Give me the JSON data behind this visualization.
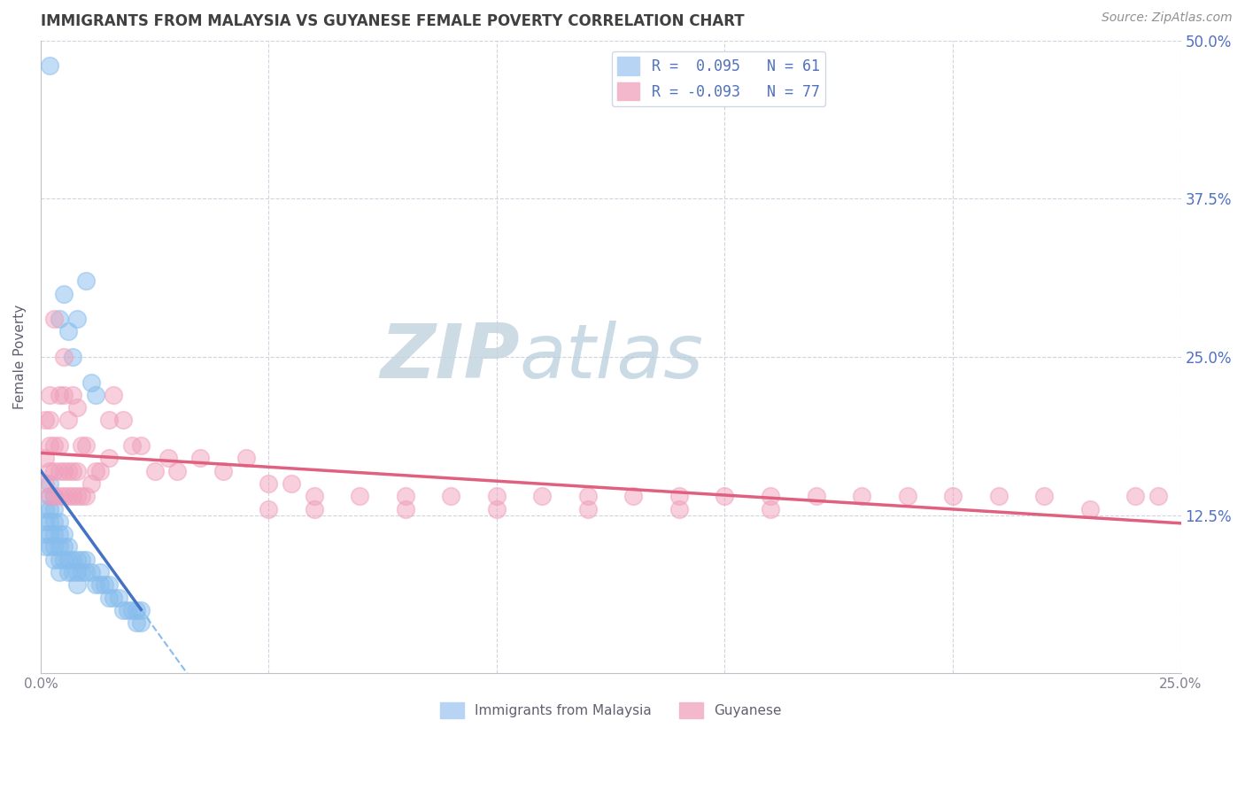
{
  "title": "IMMIGRANTS FROM MALAYSIA VS GUYANESE FEMALE POVERTY CORRELATION CHART",
  "source": "Source: ZipAtlas.com",
  "ylabel": "Female Poverty",
  "y_ticks": [
    0.0,
    0.125,
    0.25,
    0.375,
    0.5
  ],
  "y_tick_labels": [
    "",
    "12.5%",
    "25.0%",
    "37.5%",
    "50.0%"
  ],
  "x_ticks": [
    0.0,
    0.05,
    0.1,
    0.15,
    0.2,
    0.25
  ],
  "x_tick_labels": [
    "0.0%",
    "",
    "",
    "",
    "",
    "25.0%"
  ],
  "series1_color": "#87bded",
  "series2_color": "#f0a0bc",
  "trend1_color": "#4472c4",
  "trend2_color": "#e06080",
  "dashed_color": "#87bded",
  "watermark_zip_color": "#c8d4e0",
  "watermark_atlas_color": "#b0c8d8",
  "background": "#ffffff",
  "grid_color": "#d0d4e0",
  "title_color": "#404040",
  "axis_color": "#c0c0c8",
  "right_tick_color": "#5070c0",
  "xlim": [
    0.0,
    0.25
  ],
  "ylim": [
    0.0,
    0.5
  ],
  "malaysia_x": [
    0.001,
    0.001,
    0.001,
    0.001,
    0.002,
    0.002,
    0.002,
    0.002,
    0.002,
    0.002,
    0.002,
    0.003,
    0.003,
    0.003,
    0.003,
    0.003,
    0.003,
    0.004,
    0.004,
    0.004,
    0.004,
    0.004,
    0.004,
    0.005,
    0.005,
    0.005,
    0.005,
    0.006,
    0.006,
    0.006,
    0.006,
    0.007,
    0.007,
    0.007,
    0.008,
    0.008,
    0.008,
    0.009,
    0.009,
    0.01,
    0.01,
    0.01,
    0.011,
    0.011,
    0.012,
    0.012,
    0.013,
    0.013,
    0.014,
    0.015,
    0.015,
    0.016,
    0.017,
    0.018,
    0.019,
    0.02,
    0.021,
    0.021,
    0.022,
    0.022,
    0.008
  ],
  "malaysia_y": [
    0.1,
    0.11,
    0.12,
    0.13,
    0.1,
    0.11,
    0.12,
    0.13,
    0.14,
    0.15,
    0.48,
    0.09,
    0.1,
    0.11,
    0.12,
    0.13,
    0.14,
    0.08,
    0.09,
    0.1,
    0.11,
    0.12,
    0.28,
    0.09,
    0.1,
    0.11,
    0.3,
    0.08,
    0.09,
    0.1,
    0.27,
    0.08,
    0.09,
    0.25,
    0.08,
    0.09,
    0.28,
    0.08,
    0.09,
    0.08,
    0.09,
    0.31,
    0.08,
    0.23,
    0.07,
    0.22,
    0.07,
    0.08,
    0.07,
    0.06,
    0.07,
    0.06,
    0.06,
    0.05,
    0.05,
    0.05,
    0.04,
    0.05,
    0.04,
    0.05,
    0.07
  ],
  "guyanese_x": [
    0.001,
    0.001,
    0.001,
    0.002,
    0.002,
    0.002,
    0.002,
    0.002,
    0.003,
    0.003,
    0.003,
    0.003,
    0.004,
    0.004,
    0.004,
    0.004,
    0.005,
    0.005,
    0.005,
    0.005,
    0.006,
    0.006,
    0.006,
    0.007,
    0.007,
    0.007,
    0.008,
    0.008,
    0.008,
    0.009,
    0.009,
    0.01,
    0.01,
    0.011,
    0.012,
    0.013,
    0.015,
    0.015,
    0.016,
    0.018,
    0.02,
    0.022,
    0.025,
    0.028,
    0.03,
    0.035,
    0.04,
    0.045,
    0.05,
    0.055,
    0.06,
    0.07,
    0.08,
    0.09,
    0.1,
    0.11,
    0.12,
    0.13,
    0.14,
    0.15,
    0.16,
    0.17,
    0.18,
    0.19,
    0.2,
    0.21,
    0.22,
    0.23,
    0.24,
    0.245,
    0.05,
    0.06,
    0.08,
    0.1,
    0.12,
    0.14,
    0.16
  ],
  "guyanese_y": [
    0.15,
    0.17,
    0.2,
    0.14,
    0.16,
    0.18,
    0.2,
    0.22,
    0.14,
    0.16,
    0.18,
    0.28,
    0.14,
    0.16,
    0.18,
    0.22,
    0.14,
    0.16,
    0.22,
    0.25,
    0.14,
    0.16,
    0.2,
    0.14,
    0.16,
    0.22,
    0.14,
    0.16,
    0.21,
    0.14,
    0.18,
    0.14,
    0.18,
    0.15,
    0.16,
    0.16,
    0.17,
    0.2,
    0.22,
    0.2,
    0.18,
    0.18,
    0.16,
    0.17,
    0.16,
    0.17,
    0.16,
    0.17,
    0.15,
    0.15,
    0.14,
    0.14,
    0.14,
    0.14,
    0.14,
    0.14,
    0.14,
    0.14,
    0.14,
    0.14,
    0.14,
    0.14,
    0.14,
    0.14,
    0.14,
    0.14,
    0.14,
    0.13,
    0.14,
    0.14,
    0.13,
    0.13,
    0.13,
    0.13,
    0.13,
    0.13,
    0.13
  ]
}
